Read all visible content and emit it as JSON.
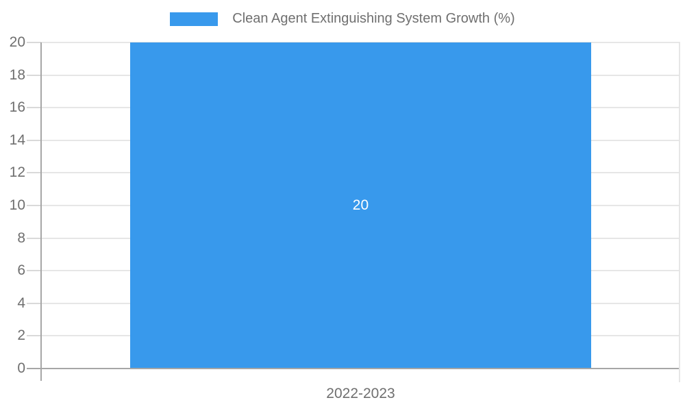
{
  "legend": {
    "label": "Clean Agent Extinguishing System Growth (%)"
  },
  "x_axis": {
    "label": "2022-2023"
  },
  "chart_data": {
    "type": "bar",
    "title": "Clean Agent Extinguishing System Growth (%)",
    "categories": [
      "2022-2023"
    ],
    "series": [
      {
        "name": "Clean Agent Extinguishing System Growth (%)",
        "values": [
          20
        ]
      }
    ],
    "values": [
      20
    ],
    "value_labels": [
      "20"
    ],
    "xlabel": "2022-2023",
    "ylabel": "",
    "ylim": [
      0,
      20
    ],
    "y_ticks": [
      0,
      2,
      4,
      6,
      8,
      10,
      12,
      14,
      16,
      18,
      20
    ],
    "grid": true,
    "legend_position": "top",
    "value_label_position": "center",
    "colors": {
      "bar": "#3899EC",
      "bar_value_label": "#FFFFFF",
      "axis_text": "#6F6F6F",
      "gridline": "#E6E6E6",
      "tick": "#D9D9D9",
      "axis_line": "#A6A6A6",
      "background": "#FFFFFF"
    }
  }
}
